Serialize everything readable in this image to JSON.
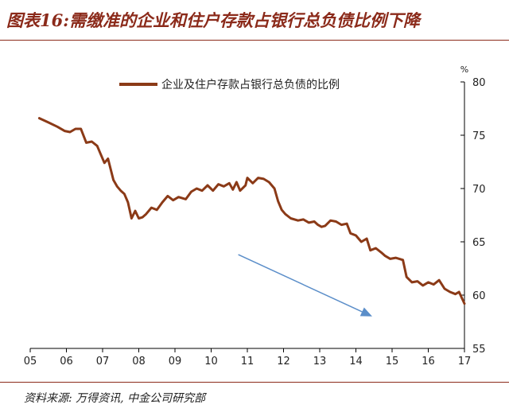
{
  "header": {
    "title": "图表16:需缴准的企业和住户存款占银行总负债比例下降"
  },
  "footer": {
    "source": "资料来源: 万得资讯, 中金公司研究部"
  },
  "colors": {
    "title": "#8b2a1a",
    "series": "#8b3a17",
    "arrow": "#5b8ec9",
    "axis": "#000000"
  },
  "chart_data": {
    "type": "line",
    "title": "",
    "xlabel": "",
    "ylabel": "%",
    "y_axis_position": "right",
    "ylim": [
      55,
      80
    ],
    "yticks": [
      "55",
      "60",
      "65",
      "70",
      "75",
      "80"
    ],
    "xlim": [
      2005,
      2017
    ],
    "xticks": [
      "05",
      "06",
      "07",
      "08",
      "09",
      "10",
      "11",
      "12",
      "13",
      "14",
      "15",
      "16",
      "17"
    ],
    "legend_position": "top",
    "grid": false,
    "series": [
      {
        "name": "企业及住户存款占银行总负债的比例",
        "color": "#8b3a17",
        "points": [
          [
            2005.25,
            76.6
          ],
          [
            2005.5,
            76.2
          ],
          [
            2005.75,
            75.8
          ],
          [
            2005.95,
            75.4
          ],
          [
            2006.1,
            75.3
          ],
          [
            2006.25,
            75.6
          ],
          [
            2006.4,
            75.6
          ],
          [
            2006.55,
            74.3
          ],
          [
            2006.7,
            74.4
          ],
          [
            2006.85,
            74.0
          ],
          [
            2006.95,
            73.2
          ],
          [
            2007.05,
            72.4
          ],
          [
            2007.15,
            72.8
          ],
          [
            2007.3,
            70.8
          ],
          [
            2007.4,
            70.2
          ],
          [
            2007.5,
            69.8
          ],
          [
            2007.6,
            69.5
          ],
          [
            2007.7,
            68.7
          ],
          [
            2007.8,
            67.2
          ],
          [
            2007.9,
            67.9
          ],
          [
            2008.0,
            67.2
          ],
          [
            2008.1,
            67.3
          ],
          [
            2008.2,
            67.6
          ],
          [
            2008.35,
            68.2
          ],
          [
            2008.5,
            68.0
          ],
          [
            2008.65,
            68.7
          ],
          [
            2008.8,
            69.3
          ],
          [
            2008.95,
            68.9
          ],
          [
            2009.1,
            69.2
          ],
          [
            2009.3,
            69.0
          ],
          [
            2009.45,
            69.7
          ],
          [
            2009.6,
            70.0
          ],
          [
            2009.75,
            69.8
          ],
          [
            2009.9,
            70.3
          ],
          [
            2010.05,
            69.8
          ],
          [
            2010.2,
            70.4
          ],
          [
            2010.35,
            70.2
          ],
          [
            2010.5,
            70.5
          ],
          [
            2010.6,
            69.9
          ],
          [
            2010.7,
            70.6
          ],
          [
            2010.8,
            69.8
          ],
          [
            2010.95,
            70.3
          ],
          [
            2011.0,
            71.0
          ],
          [
            2011.15,
            70.5
          ],
          [
            2011.3,
            71.0
          ],
          [
            2011.45,
            70.9
          ],
          [
            2011.6,
            70.6
          ],
          [
            2011.75,
            70.0
          ],
          [
            2011.85,
            68.8
          ],
          [
            2011.95,
            68.0
          ],
          [
            2012.05,
            67.6
          ],
          [
            2012.2,
            67.2
          ],
          [
            2012.4,
            67.0
          ],
          [
            2012.55,
            67.1
          ],
          [
            2012.7,
            66.8
          ],
          [
            2012.85,
            66.9
          ],
          [
            2012.95,
            66.6
          ],
          [
            2013.05,
            66.4
          ],
          [
            2013.15,
            66.5
          ],
          [
            2013.3,
            67.0
          ],
          [
            2013.45,
            66.9
          ],
          [
            2013.6,
            66.6
          ],
          [
            2013.75,
            66.7
          ],
          [
            2013.85,
            65.8
          ],
          [
            2014.0,
            65.6
          ],
          [
            2014.15,
            65.0
          ],
          [
            2014.3,
            65.3
          ],
          [
            2014.4,
            64.2
          ],
          [
            2014.55,
            64.4
          ],
          [
            2014.7,
            64.0
          ],
          [
            2014.8,
            63.7
          ],
          [
            2014.95,
            63.4
          ],
          [
            2015.1,
            63.5
          ],
          [
            2015.3,
            63.3
          ],
          [
            2015.4,
            61.7
          ],
          [
            2015.55,
            61.2
          ],
          [
            2015.7,
            61.3
          ],
          [
            2015.85,
            60.9
          ],
          [
            2016.0,
            61.2
          ],
          [
            2016.15,
            61.0
          ],
          [
            2016.3,
            61.4
          ],
          [
            2016.45,
            60.6
          ],
          [
            2016.6,
            60.3
          ],
          [
            2016.75,
            60.1
          ],
          [
            2016.85,
            60.3
          ],
          [
            2017.0,
            59.2
          ]
        ]
      }
    ],
    "annotations": [
      {
        "type": "arrow",
        "from": [
          2010.75,
          63.8
        ],
        "to": [
          2014.45,
          58.0
        ],
        "color": "#5b8ec9"
      }
    ]
  }
}
